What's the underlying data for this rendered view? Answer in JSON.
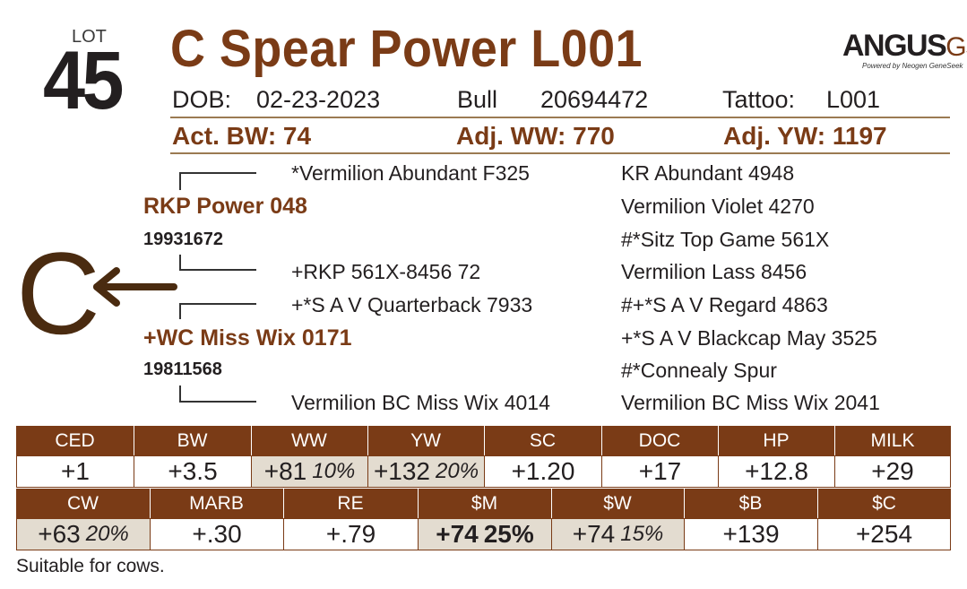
{
  "lot": {
    "label": "LOT",
    "number": "45"
  },
  "title": "C Spear Power L001",
  "logo": {
    "text_main": "ANGUS",
    "text_accent": "GS",
    "tagline": "Powered by Neogen GeneSeek"
  },
  "info": {
    "dob_label": "DOB:",
    "dob": "02-23-2023",
    "sex": "Bull",
    "registration": "20694472",
    "tattoo_label": "Tattoo:",
    "tattoo": "L001"
  },
  "weights": {
    "act_bw": "Act. BW: 74",
    "adj_ww": "Adj. WW: 770",
    "adj_yw": "Adj. YW: 1197"
  },
  "use_code": "C",
  "pedigree": {
    "sire": {
      "name": "RKP Power 048",
      "reg": "19931672"
    },
    "dam": {
      "name": "+WC Miss Wix 0171",
      "reg": "19811568"
    },
    "sire_sire": "*Vermilion Abundant F325",
    "sire_dam": "+RKP 561X-8456 72",
    "dam_sire": "+*S A V Quarterback 7933",
    "dam_dam": "Vermilion BC Miss Wix 4014",
    "gen3": [
      "KR Abundant 4948",
      "Vermilion Violet 4270",
      "#*Sitz Top Game 561X",
      "Vermilion Lass 8456",
      "#+*S A V Regard 4863",
      "+*S A V Blackcap May 3525",
      "#*Connealy Spur",
      "Vermilion BC Miss Wix 2041"
    ]
  },
  "epd_row1": [
    {
      "name": "CED",
      "value": "+1",
      "pct": "",
      "shade": false
    },
    {
      "name": "BW",
      "value": "+3.5",
      "pct": "",
      "shade": false
    },
    {
      "name": "WW",
      "value": "+81",
      "pct": "10%",
      "shade": true
    },
    {
      "name": "YW",
      "value": "+132",
      "pct": "20%",
      "shade": true
    },
    {
      "name": "SC",
      "value": "+1.20",
      "pct": "",
      "shade": false
    },
    {
      "name": "DOC",
      "value": "+17",
      "pct": "",
      "shade": false
    },
    {
      "name": "HP",
      "value": "+12.8",
      "pct": "",
      "shade": false
    },
    {
      "name": "MILK",
      "value": "+29",
      "pct": "",
      "shade": false
    }
  ],
  "epd_row2": [
    {
      "name": "CW",
      "value": "+63",
      "pct": "20%",
      "shade": true
    },
    {
      "name": "MARB",
      "value": "+.30",
      "pct": "",
      "shade": false
    },
    {
      "name": "RE",
      "value": "+.79",
      "pct": "",
      "shade": false
    },
    {
      "name": "$M",
      "value": "+74",
      "pct": "25%",
      "shade": true,
      "pct_bold": true
    },
    {
      "name": "$W",
      "value": "+74",
      "pct": "15%",
      "shade": true
    },
    {
      "name": "$B",
      "value": "+139",
      "pct": "",
      "shade": false
    },
    {
      "name": "$C",
      "value": "+254",
      "pct": "",
      "shade": false
    }
  ],
  "footnote": "Suitable for cows.",
  "colors": {
    "brand_brown": "#7a3b16",
    "shade": "#e3dcd0",
    "text": "#231f20"
  }
}
